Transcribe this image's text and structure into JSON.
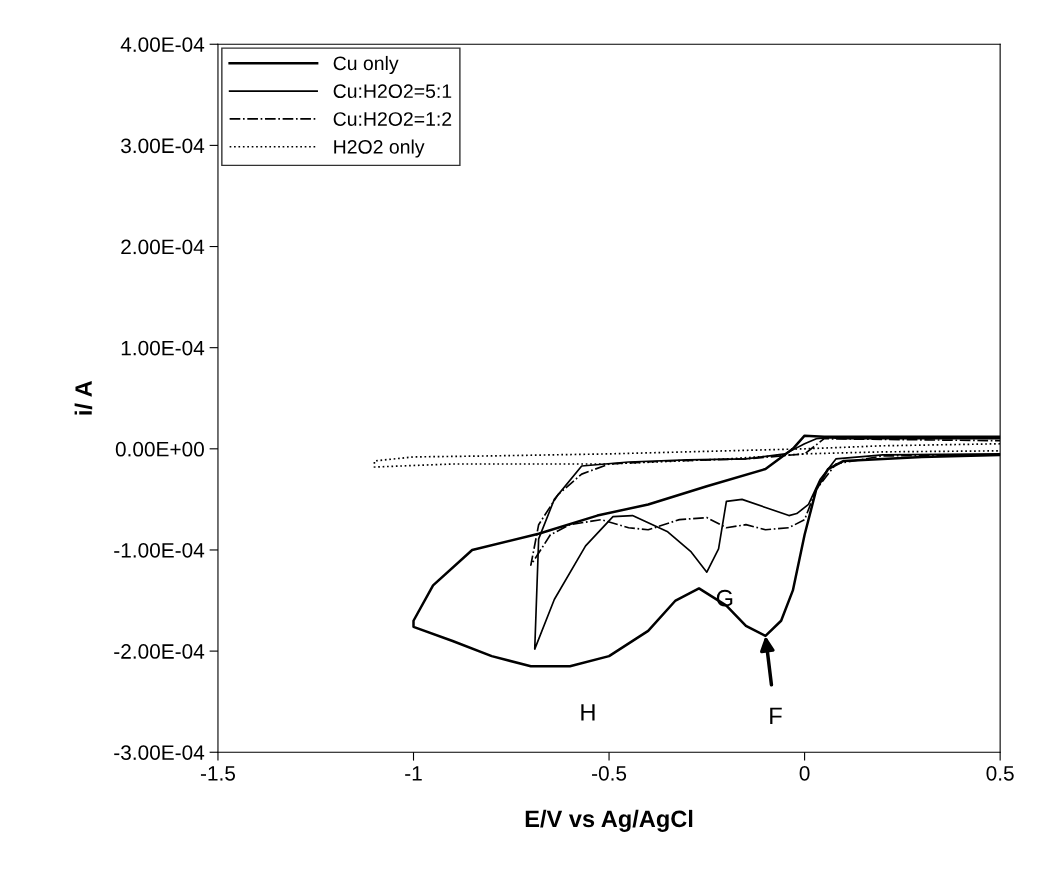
{
  "chart_data": {
    "type": "line",
    "xlabel": "E/V vs Ag/AgCl",
    "ylabel": "i/ A",
    "legend": "top left",
    "grid": false,
    "marker": "none",
    "xlim": [
      -1.5,
      0.5
    ],
    "ylim": [
      -0.0003,
      0.0004
    ],
    "xticks": [
      {
        "value": -1.5,
        "label": "-1.5"
      },
      {
        "value": -1,
        "label": "-1"
      },
      {
        "value": -0.5,
        "label": "-0.5"
      },
      {
        "value": 0,
        "label": "0"
      },
      {
        "value": 0.5,
        "label": "0.5"
      }
    ],
    "yticks": [
      {
        "value": -0.0003,
        "label": "-3.00E-04"
      },
      {
        "value": -0.0002,
        "label": "-2.00E-04"
      },
      {
        "value": -0.0001,
        "label": "-1.00E-04"
      },
      {
        "value": 0,
        "label": "0.00E+00"
      },
      {
        "value": 0.0001,
        "label": "1.00E-04"
      },
      {
        "value": 0.0002,
        "label": "2.00E-04"
      },
      {
        "value": 0.0003,
        "label": "3.00E-04"
      },
      {
        "value": 0.0004,
        "label": "4.00E-04"
      }
    ],
    "series": [
      {
        "name": "Cu only",
        "color": "#000000",
        "line_style": "solid",
        "x": [
          0.5,
          0.3,
          0.1,
          0.06,
          0.03,
          0.0,
          -0.03,
          -0.06,
          -0.1,
          -0.15,
          -0.2,
          -0.27,
          -0.33,
          -0.4,
          -0.5,
          -0.6,
          -0.7,
          -0.8,
          -0.9,
          -1.0,
          -1.0,
          -0.95,
          -0.85,
          -0.68,
          -0.53,
          -0.4,
          -0.25,
          -0.1,
          -0.03,
          0.0,
          0.05,
          0.1,
          0.5
        ],
        "values": [
          -6e-06,
          -8e-06,
          -1.2e-05,
          -2e-05,
          -4e-05,
          -8.5e-05,
          -0.00014,
          -0.00017,
          -0.000185,
          -0.000175,
          -0.000155,
          -0.000138,
          -0.00015,
          -0.00018,
          -0.000205,
          -0.000215,
          -0.000215,
          -0.000205,
          -0.00019,
          -0.000176,
          -0.00017,
          -0.000135,
          -0.0001,
          -8.4e-05,
          -6.6e-05,
          -5.5e-05,
          -3.7e-05,
          -2e-05,
          0.0,
          1.3e-05,
          1.2e-05,
          1.2e-05,
          1.2e-05
        ]
      },
      {
        "name": "Cu:H2O2=5:1",
        "color": "#000000",
        "line_style": "solid",
        "x": [
          0.5,
          0.2,
          0.08,
          0.04,
          0.01,
          -0.02,
          -0.04,
          -0.1,
          -0.16,
          -0.2,
          -0.22,
          -0.25,
          -0.29,
          -0.35,
          -0.44,
          -0.49,
          -0.56,
          -0.64,
          -0.69,
          -0.68,
          -0.64,
          -0.57,
          -0.45,
          -0.3,
          -0.15,
          -0.05,
          0.0,
          0.03,
          0.06,
          0.1,
          0.5
        ],
        "values": [
          -5e-06,
          -6e-06,
          -1e-05,
          -3e-05,
          -5.5e-05,
          -6.4e-05,
          -6.6e-05,
          -5.8e-05,
          -5e-05,
          -5.2e-05,
          -9.9e-05,
          -0.000122,
          -0.000102,
          -8.2e-05,
          -6.6e-05,
          -6.7e-05,
          -9.6e-05,
          -0.000149,
          -0.000198,
          -8.9e-05,
          -5e-05,
          -1.7e-05,
          -1.3e-05,
          -1.1e-05,
          -1e-05,
          -5e-06,
          5e-06,
          1e-05,
          1.1e-05,
          1e-05,
          1e-05
        ]
      },
      {
        "name": "Cu:H2O2=1:2",
        "color": "#000000",
        "line_style": "dashdot",
        "x": [
          0.5,
          0.2,
          0.08,
          0.03,
          0.0,
          -0.04,
          -0.1,
          -0.15,
          -0.2,
          -0.25,
          -0.32,
          -0.4,
          -0.45,
          -0.52,
          -0.6,
          -0.65,
          -0.7,
          -0.68,
          -0.63,
          -0.57,
          -0.5,
          -0.35,
          -0.15,
          0.0,
          0.05,
          0.5
        ],
        "values": [
          -6e-06,
          -7e-06,
          -1.5e-05,
          -4e-05,
          -7e-05,
          -7.8e-05,
          -8e-05,
          -7.5e-05,
          -7.8e-05,
          -6.8e-05,
          -7e-05,
          -8e-05,
          -7.8e-05,
          -7e-05,
          -7.5e-05,
          -8.5e-05,
          -0.000115,
          -7.5e-05,
          -4.5e-05,
          -2.5e-05,
          -1.5e-05,
          -1.2e-05,
          -1e-05,
          -5e-06,
          1e-05,
          8e-06
        ]
      },
      {
        "name": "H2O2 only",
        "color": "#000000",
        "line_style": "dotted",
        "x": [
          0.5,
          0.2,
          0.0,
          -0.3,
          -0.5,
          -0.8,
          -1.0,
          -1.1,
          -1.1,
          -0.9,
          -0.7,
          -0.5,
          -0.2,
          0.0,
          0.2,
          0.5
        ],
        "values": [
          5e-06,
          3e-06,
          0.0,
          -3e-06,
          -5e-06,
          -7e-06,
          -8e-06,
          -1.2e-05,
          -1.8e-05,
          -1.5e-05,
          -1.5e-05,
          -1.5e-05,
          -1e-05,
          -5e-06,
          -3e-06,
          -2e-06
        ]
      }
    ],
    "annotations": [
      {
        "text": "G",
        "x": -0.25,
        "y": -0.000122
      },
      {
        "text": "H",
        "x": -0.6,
        "y": -0.000215
      },
      {
        "text": "F",
        "x": -0.1,
        "y": -0.000185
      }
    ]
  }
}
